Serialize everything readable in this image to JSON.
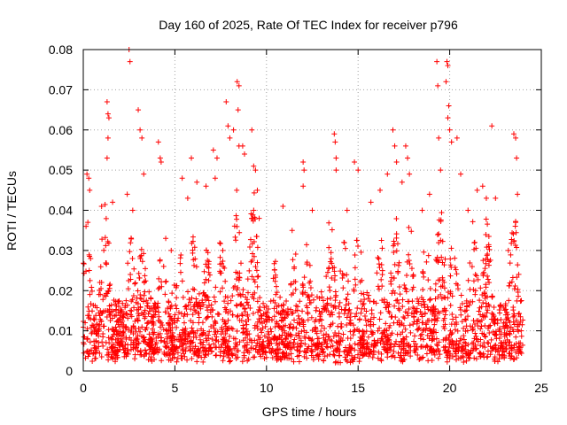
{
  "chart_data": {
    "type": "scatter",
    "title": "Day 160 of 2025, Rate Of TEC Index for receiver p796",
    "xlabel": "GPS time / hours",
    "ylabel": "ROTI / TECUs",
    "xlim": [
      0,
      25
    ],
    "ylim": [
      0,
      0.08
    ],
    "xticks": [
      0,
      5,
      10,
      15,
      20,
      25
    ],
    "yticks": [
      0,
      0.01,
      0.02,
      0.03,
      0.04,
      0.05,
      0.06,
      0.07,
      0.08
    ],
    "xtick_labels": [
      "0",
      "5",
      "10",
      "15",
      "20",
      "25"
    ],
    "ytick_labels": [
      "0",
      "0.01",
      "0.02",
      "0.03",
      "0.04",
      "0.05",
      "0.06",
      "0.07",
      "0.08"
    ],
    "grid": true,
    "marker": "plus",
    "color": "#ff0000",
    "points": [
      [
        0.2,
        0.049
      ],
      [
        0.3,
        0.048
      ],
      [
        0.15,
        0.036
      ],
      [
        0.25,
        0.037
      ],
      [
        0.35,
        0.045
      ],
      [
        0.1,
        0.012
      ],
      [
        0.4,
        0.028
      ],
      [
        1.3,
        0.067
      ],
      [
        1.35,
        0.064
      ],
      [
        1.4,
        0.063
      ],
      [
        1.35,
        0.058
      ],
      [
        1.3,
        0.053
      ],
      [
        1.0,
        0.041
      ],
      [
        1.6,
        0.042
      ],
      [
        2.5,
        0.08
      ],
      [
        2.55,
        0.077
      ],
      [
        2.4,
        0.044
      ],
      [
        2.7,
        0.04
      ],
      [
        3.0,
        0.065
      ],
      [
        3.1,
        0.06
      ],
      [
        3.2,
        0.058
      ],
      [
        3.3,
        0.049
      ],
      [
        4.1,
        0.057
      ],
      [
        4.2,
        0.053
      ],
      [
        4.25,
        0.052
      ],
      [
        4.5,
        0.033
      ],
      [
        4.8,
        0.03
      ],
      [
        5.4,
        0.048
      ],
      [
        5.9,
        0.053
      ],
      [
        5.7,
        0.043
      ],
      [
        6.2,
        0.047
      ],
      [
        6.7,
        0.046
      ],
      [
        7.1,
        0.055
      ],
      [
        7.3,
        0.053
      ],
      [
        7.2,
        0.048
      ],
      [
        7.8,
        0.067
      ],
      [
        7.9,
        0.061
      ],
      [
        8.0,
        0.058
      ],
      [
        8.2,
        0.06
      ],
      [
        8.4,
        0.072
      ],
      [
        8.5,
        0.071
      ],
      [
        8.45,
        0.065
      ],
      [
        8.5,
        0.056
      ],
      [
        8.7,
        0.056
      ],
      [
        8.8,
        0.054
      ],
      [
        9.2,
        0.06
      ],
      [
        9.3,
        0.051
      ],
      [
        9.4,
        0.05
      ],
      [
        9.5,
        0.045
      ],
      [
        9.3,
        0.04
      ],
      [
        9.6,
        0.038
      ],
      [
        10.9,
        0.041
      ],
      [
        11.4,
        0.035
      ],
      [
        12.0,
        0.052
      ],
      [
        12.05,
        0.05
      ],
      [
        12.0,
        0.046
      ],
      [
        12.5,
        0.04
      ],
      [
        13.7,
        0.059
      ],
      [
        13.75,
        0.057
      ],
      [
        13.8,
        0.053
      ],
      [
        13.8,
        0.05
      ],
      [
        14.4,
        0.04
      ],
      [
        14.8,
        0.052
      ],
      [
        15.0,
        0.05
      ],
      [
        15.7,
        0.042
      ],
      [
        16.2,
        0.045
      ],
      [
        16.6,
        0.049
      ],
      [
        16.9,
        0.06
      ],
      [
        17.0,
        0.056
      ],
      [
        17.1,
        0.052
      ],
      [
        17.4,
        0.047
      ],
      [
        17.6,
        0.056
      ],
      [
        17.7,
        0.053
      ],
      [
        17.8,
        0.049
      ],
      [
        18.5,
        0.04
      ],
      [
        18.9,
        0.044
      ],
      [
        19.3,
        0.077
      ],
      [
        19.35,
        0.071
      ],
      [
        19.4,
        0.058
      ],
      [
        19.5,
        0.05
      ],
      [
        19.8,
        0.072
      ],
      [
        19.85,
        0.077
      ],
      [
        19.9,
        0.076
      ],
      [
        19.95,
        0.066
      ],
      [
        19.9,
        0.063
      ],
      [
        20.0,
        0.06
      ],
      [
        20.1,
        0.057
      ],
      [
        20.4,
        0.058
      ],
      [
        20.6,
        0.049
      ],
      [
        21.0,
        0.04
      ],
      [
        21.5,
        0.045
      ],
      [
        21.8,
        0.046
      ],
      [
        22.0,
        0.043
      ],
      [
        22.3,
        0.061
      ],
      [
        22.5,
        0.043
      ],
      [
        23.2,
        0.03
      ],
      [
        23.5,
        0.059
      ],
      [
        23.6,
        0.058
      ],
      [
        23.65,
        0.053
      ],
      [
        23.7,
        0.044
      ],
      [
        23.6,
        0.037
      ]
    ]
  }
}
